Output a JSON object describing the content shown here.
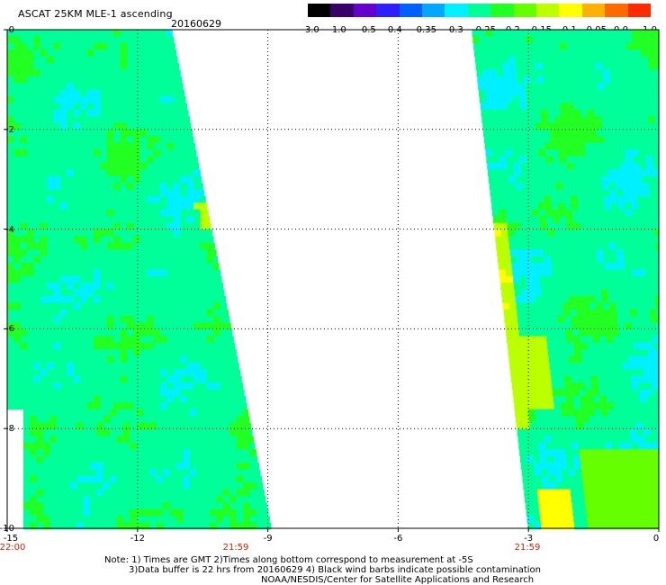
{
  "header": {
    "title": "ASCAT 25KM MLE-1 ascending",
    "date": "20160629"
  },
  "colorbar": {
    "labels": [
      "-3.0",
      "-1.0",
      "-0.5",
      "-0.4",
      "-0.35",
      "-0.3",
      "-0.25",
      "-0.2",
      "-0.15",
      "-0.1",
      "-0.05",
      "0.0",
      "1.0"
    ],
    "colors": [
      "#000000",
      "#3a006a",
      "#6600cc",
      "#2e1fff",
      "#0060ff",
      "#00a8ff",
      "#00f0ff",
      "#00ff99",
      "#22ff22",
      "#66ff00",
      "#bbff00",
      "#ffff00",
      "#ffb000",
      "#ff6a00",
      "#ff2a00"
    ]
  },
  "axes": {
    "y_labels": [
      "0",
      "-2",
      "-4",
      "-6",
      "-8",
      "-10"
    ],
    "x_labels": [
      "-15",
      "-12",
      "-9",
      "-6",
      "-3",
      "0"
    ],
    "time_labels": [
      "22:00",
      "21:59",
      "21:59"
    ]
  },
  "map_data": {
    "lat_range": [
      -10,
      0
    ],
    "lon_range": [
      -15,
      0
    ],
    "grid": "dotted every 3 deg lon / 2 deg lat",
    "left_swath": {
      "lon_west": -15,
      "lon_east_top": -11.2,
      "lon_east_bottom": -8.9,
      "dominant_value_range": [
        -0.25,
        -0.15
      ]
    },
    "right_swath": {
      "lon_west_top": -4.3,
      "lon_west_bottom": -3.0,
      "lon_east": 0,
      "dominant_value_range": [
        -0.25,
        -0.05
      ],
      "max_value_region": "lower-right near -2.5E, -9.5N (0.0 to 1.0)"
    }
  },
  "footer": {
    "note_line1": "Note: 1) Times are GMT 2)Times along bottom correspond to measurement at -5S",
    "note_line2": "3)Data buffer is 22 hrs from 20160629 4) Black wind barbs indicate possible contamination",
    "note_line3": "NOAA/NESDIS/Center for Satellite Applications and Research"
  }
}
